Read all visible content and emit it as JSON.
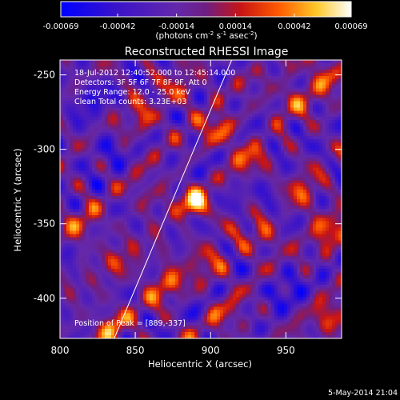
{
  "chart_data": {
    "type": "heatmap",
    "title": "Reconstructed RHESSI Image",
    "xlabel": "Heliocentric X (arcsec)",
    "ylabel": "Heliocentric Y (arcsec)",
    "xlim": [
      800,
      987
    ],
    "ylim": [
      -427,
      -240
    ],
    "x_ticks": [
      800,
      850,
      900,
      950
    ],
    "y_ticks": [
      -250,
      -300,
      -350,
      -400
    ],
    "colorbar": {
      "ticks": [
        "-0.00069",
        "-0.00042",
        "-0.00014",
        "0.00014",
        "0.00042",
        "0.00069"
      ],
      "range": [
        -0.00069,
        0.00069
      ],
      "units_prefix": "(photons cm",
      "units_exp1": "-2",
      "units_mid1": " s",
      "units_exp2": "-1",
      "units_mid2": " asec",
      "units_exp3": "-2",
      "units_suffix": ")"
    },
    "peak": {
      "x": 889,
      "y": -337,
      "value": 0.00069
    },
    "sources": [
      {
        "x": 889,
        "y": -337,
        "value": 0.00069
      },
      {
        "x": 870,
        "y": -390,
        "value": 0.00045
      },
      {
        "x": 960,
        "y": -330,
        "value": 0.0004
      },
      {
        "x": 935,
        "y": -360,
        "value": 0.00035
      },
      {
        "x": 980,
        "y": -355,
        "value": 0.00042
      },
      {
        "x": 835,
        "y": -420,
        "value": 0.00045
      },
      {
        "x": 815,
        "y": -350,
        "value": 0.0003
      },
      {
        "x": 905,
        "y": -285,
        "value": 0.00038
      },
      {
        "x": 955,
        "y": -265,
        "value": 0.00035
      },
      {
        "x": 975,
        "y": -250,
        "value": 0.0004
      },
      {
        "x": 855,
        "y": -280,
        "value": 0.0003
      },
      {
        "x": 880,
        "y": -260,
        "value": 0.00028
      },
      {
        "x": 980,
        "y": -415,
        "value": 0.0004
      },
      {
        "x": 910,
        "y": -410,
        "value": 0.00025
      },
      {
        "x": 900,
        "y": -375,
        "value": 0.0003
      },
      {
        "x": 840,
        "y": -375,
        "value": 0.00025
      },
      {
        "x": 925,
        "y": -305,
        "value": 0.0003
      },
      {
        "x": 860,
        "y": -330,
        "value": 0.00022
      },
      {
        "x": 830,
        "y": -300,
        "value": -0.0002
      },
      {
        "x": 820,
        "y": -265,
        "value": -0.00028
      },
      {
        "x": 950,
        "y": -395,
        "value": -0.0003
      },
      {
        "x": 945,
        "y": -335,
        "value": -0.00022
      }
    ],
    "info": [
      "18-Jul-2012 12:40:52.000 to 12:45:14.000",
      "Detectors: 3F 5F 6F 7F 8F 9F, Att 0",
      "Energy Range: 12.0 - 25.0 keV",
      "Clean     Total counts: 3.23E+03"
    ],
    "peak_label": "Position of Peak = [889,-337]",
    "limb_line": [
      [
        836,
        -427
      ],
      [
        914,
        -240
      ]
    ],
    "grid": false,
    "legend": "none"
  },
  "footer": {
    "date": "5-May-2014 21:04"
  },
  "colors": {
    "background": "#000000",
    "text": "#ffffff"
  }
}
